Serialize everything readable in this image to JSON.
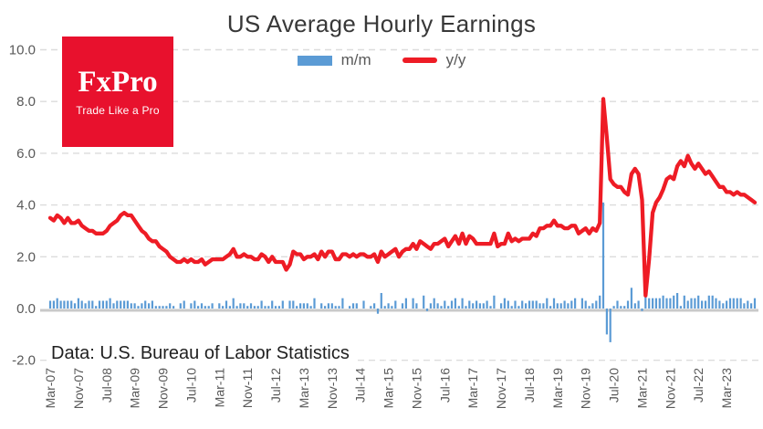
{
  "header": {
    "title": "US Average Hourly Earnings"
  },
  "legend": {
    "items": [
      {
        "label": "m/m",
        "color": "#5b9bd5"
      },
      {
        "label": "y/y",
        "color": "#ee1c25"
      }
    ]
  },
  "logo": {
    "name": "FxPro",
    "tagline": "Trade Like a Pro",
    "bg": "#e8112d"
  },
  "footer": {
    "source_note": "Data: U.S. Bureau of Labor Statistics"
  },
  "chart_data": {
    "type": "combo",
    "title": "US Average Hourly Earnings",
    "x_start": "Mar-2007",
    "x_end": "Nov-2023",
    "frequency": "monthly",
    "grid": "horizontal-dashed",
    "legend_position": "top-center",
    "y_axis": {
      "lim": [
        -2.0,
        10.0
      ],
      "ticks": [
        10,
        8,
        6,
        4,
        2,
        0,
        -2
      ]
    },
    "x_axis": {
      "tick_every": 8,
      "tick_labels": [
        "Mar-07",
        "Nov-07",
        "Jul-08",
        "Mar-09",
        "Nov-09",
        "Jul-10",
        "Mar-11",
        "Nov-11",
        "Jul-12",
        "Mar-13",
        "Nov-13",
        "Jul-14",
        "Mar-15",
        "Nov-15",
        "Jul-16",
        "Mar-17",
        "Nov-17",
        "Jul-18",
        "Mar-19",
        "Nov-19",
        "Jul-20",
        "Mar-21",
        "Nov-21",
        "Jul-22",
        "Mar-23"
      ]
    },
    "series": [
      {
        "name": "m/m",
        "type": "bar",
        "color": "#5b9bd5",
        "values": [
          0.3,
          0.3,
          0.4,
          0.3,
          0.3,
          0.3,
          0.3,
          0.2,
          0.4,
          0.3,
          0.2,
          0.3,
          0.3,
          0.1,
          0.3,
          0.3,
          0.3,
          0.4,
          0.2,
          0.3,
          0.3,
          0.3,
          0.3,
          0.2,
          0.2,
          0.1,
          0.2,
          0.3,
          0.2,
          0.3,
          0.1,
          0.1,
          0.1,
          0.1,
          0.2,
          0.1,
          0.0,
          0.2,
          0.3,
          0.0,
          0.2,
          0.3,
          0.1,
          0.2,
          0.1,
          0.1,
          0.2,
          0.0,
          0.2,
          0.1,
          0.3,
          0.1,
          0.4,
          0.1,
          0.2,
          0.2,
          0.1,
          0.2,
          0.1,
          0.1,
          0.3,
          0.1,
          0.1,
          0.3,
          0.1,
          0.1,
          0.3,
          0.0,
          0.3,
          0.3,
          0.1,
          0.2,
          0.2,
          0.2,
          0.1,
          0.4,
          0.0,
          0.2,
          0.1,
          0.2,
          0.2,
          0.1,
          0.1,
          0.4,
          0.0,
          0.1,
          0.2,
          0.2,
          0.0,
          0.3,
          0.0,
          0.1,
          0.2,
          -0.2,
          0.6,
          0.1,
          0.2,
          0.1,
          0.3,
          0.0,
          0.2,
          0.4,
          0.0,
          0.4,
          0.2,
          0.0,
          0.5,
          -0.1,
          0.2,
          0.4,
          0.2,
          0.1,
          0.3,
          0.1,
          0.3,
          0.4,
          0.1,
          0.4,
          0.1,
          0.3,
          0.2,
          0.3,
          0.2,
          0.2,
          0.3,
          0.1,
          0.5,
          0.0,
          0.2,
          0.4,
          0.3,
          0.1,
          0.3,
          0.1,
          0.3,
          0.2,
          0.3,
          0.3,
          0.3,
          0.2,
          0.2,
          0.4,
          0.1,
          0.4,
          0.2,
          0.2,
          0.3,
          0.2,
          0.3,
          0.4,
          0.0,
          0.4,
          0.3,
          0.1,
          0.2,
          0.3,
          0.5,
          4.1,
          -1.0,
          -1.3,
          0.1,
          0.3,
          0.1,
          0.1,
          0.3,
          0.8,
          0.2,
          0.3,
          -0.1,
          0.7,
          0.4,
          0.4,
          0.4,
          0.4,
          0.5,
          0.4,
          0.4,
          0.5,
          0.6,
          0.1,
          0.5,
          0.3,
          0.4,
          0.4,
          0.5,
          0.3,
          0.3,
          0.5,
          0.5,
          0.4,
          0.3,
          0.2,
          0.3,
          0.4,
          0.4,
          0.4,
          0.4,
          0.2,
          0.3,
          0.2,
          0.4
        ]
      },
      {
        "name": "y/y",
        "type": "line",
        "color": "#ee1c25",
        "values": [
          3.5,
          3.4,
          3.6,
          3.5,
          3.3,
          3.5,
          3.3,
          3.3,
          3.4,
          3.2,
          3.1,
          3.0,
          3.0,
          2.9,
          2.9,
          2.9,
          3.0,
          3.2,
          3.3,
          3.4,
          3.6,
          3.7,
          3.6,
          3.6,
          3.4,
          3.2,
          3.0,
          2.9,
          2.7,
          2.6,
          2.6,
          2.4,
          2.3,
          2.2,
          2.0,
          1.9,
          1.8,
          1.8,
          1.9,
          1.8,
          1.9,
          1.8,
          1.8,
          1.9,
          1.7,
          1.8,
          1.9,
          1.9,
          1.9,
          1.9,
          2.0,
          2.1,
          2.3,
          2.0,
          2.0,
          2.1,
          2.0,
          2.0,
          1.9,
          1.9,
          2.1,
          2.0,
          1.8,
          2.0,
          1.8,
          1.8,
          1.8,
          1.5,
          1.7,
          2.2,
          2.1,
          2.1,
          1.9,
          2.0,
          2.0,
          2.1,
          1.9,
          2.2,
          2.0,
          2.2,
          2.2,
          1.9,
          1.9,
          2.1,
          2.1,
          2.0,
          2.1,
          2.0,
          2.1,
          2.1,
          2.0,
          2.0,
          2.1,
          1.8,
          2.2,
          2.0,
          2.1,
          2.2,
          2.3,
          2.0,
          2.2,
          2.3,
          2.3,
          2.5,
          2.3,
          2.6,
          2.5,
          2.4,
          2.3,
          2.5,
          2.5,
          2.6,
          2.7,
          2.4,
          2.6,
          2.8,
          2.5,
          2.9,
          2.5,
          2.8,
          2.7,
          2.5,
          2.5,
          2.5,
          2.5,
          2.5,
          2.9,
          2.4,
          2.5,
          2.5,
          2.9,
          2.6,
          2.7,
          2.6,
          2.7,
          2.7,
          2.7,
          2.9,
          2.8,
          3.1,
          3.1,
          3.2,
          3.2,
          3.4,
          3.2,
          3.2,
          3.1,
          3.1,
          3.2,
          3.2,
          2.9,
          3.0,
          3.1,
          2.9,
          3.1,
          3.0,
          3.3,
          8.1,
          6.6,
          5.0,
          4.8,
          4.7,
          4.7,
          4.5,
          4.4,
          5.2,
          5.4,
          5.2,
          4.2,
          0.5,
          1.9,
          3.7,
          4.1,
          4.3,
          4.6,
          5.0,
          5.1,
          5.0,
          5.5,
          5.7,
          5.5,
          5.9,
          5.6,
          5.4,
          5.6,
          5.4,
          5.2,
          5.3,
          5.1,
          4.9,
          4.7,
          4.7,
          4.5,
          4.5,
          4.4,
          4.5,
          4.4,
          4.4,
          4.3,
          4.2,
          4.1
        ]
      }
    ],
    "source_note": "Data: U.S. Bureau of Labor Statistics"
  }
}
